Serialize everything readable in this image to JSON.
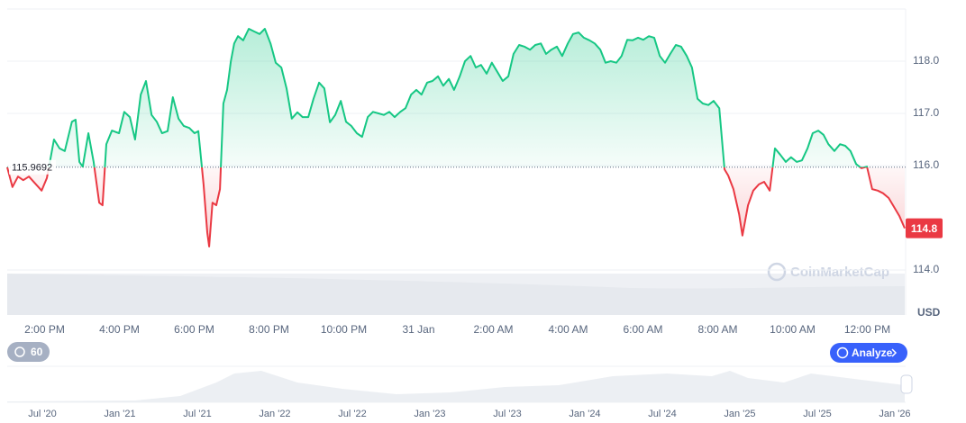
{
  "chart_data": {
    "type": "line",
    "reference": 115.9692,
    "price": 114.8,
    "currency": "USD",
    "watermark": "CoinMarketCap",
    "interval_button": "60",
    "analyze_button": "Analyze",
    "colors": {
      "up": "#16c784",
      "down": "#ea3943"
    },
    "xlim": [
      13,
      37
    ],
    "ylim": [
      114,
      119
    ],
    "yticks": [
      {
        "value": 114,
        "label": "114.0"
      },
      {
        "value": 116,
        "label": "116.0"
      },
      {
        "value": 117,
        "label": "117.0"
      },
      {
        "value": 118,
        "label": "118.0"
      }
    ],
    "xticks": [
      {
        "value": 14,
        "label": "2:00 PM"
      },
      {
        "value": 16,
        "label": "4:00 PM"
      },
      {
        "value": 18,
        "label": "6:00 PM"
      },
      {
        "value": 20,
        "label": "8:00 PM"
      },
      {
        "value": 22,
        "label": "10:00 PM"
      },
      {
        "value": 24,
        "label": "31 Jan"
      },
      {
        "value": 26,
        "label": "2:00 AM"
      },
      {
        "value": 28,
        "label": "4:00 AM"
      },
      {
        "value": 30,
        "label": "6:00 AM"
      },
      {
        "value": 32,
        "label": "8:00 AM"
      },
      {
        "value": 34,
        "label": "10:00 AM"
      },
      {
        "value": 36,
        "label": "12:00 PM"
      }
    ],
    "x": [
      13.0,
      13.14,
      13.29,
      13.43,
      13.58,
      13.77,
      13.92,
      14.06,
      14.16,
      14.25,
      14.4,
      14.54,
      14.73,
      14.83,
      14.93,
      15.02,
      15.17,
      15.31,
      15.46,
      15.55,
      15.65,
      15.8,
      15.99,
      16.13,
      16.28,
      16.42,
      16.57,
      16.71,
      16.86,
      17.0,
      17.14,
      17.29,
      17.43,
      17.58,
      17.72,
      17.87,
      18.01,
      18.11,
      18.25,
      18.35,
      18.4,
      18.49,
      18.59,
      18.69,
      18.78,
      18.88,
      18.98,
      19.07,
      19.17,
      19.31,
      19.46,
      19.6,
      19.75,
      19.89,
      20.04,
      20.18,
      20.33,
      20.47,
      20.61,
      20.76,
      20.9,
      21.05,
      21.19,
      21.34,
      21.48,
      21.63,
      21.77,
      21.92,
      22.06,
      22.2,
      22.35,
      22.49,
      22.64,
      22.78,
      22.93,
      23.07,
      23.22,
      23.36,
      23.51,
      23.65,
      23.8,
      23.94,
      24.08,
      24.23,
      24.37,
      24.52,
      24.66,
      24.81,
      24.95,
      25.1,
      25.24,
      25.39,
      25.53,
      25.67,
      25.82,
      25.96,
      26.11,
      26.25,
      26.4,
      26.54,
      26.69,
      26.83,
      26.98,
      27.12,
      27.27,
      27.41,
      27.55,
      27.7,
      27.84,
      27.99,
      28.13,
      28.28,
      28.42,
      28.57,
      28.71,
      28.86,
      29.0,
      29.14,
      29.29,
      29.43,
      29.58,
      29.72,
      29.87,
      30.01,
      30.16,
      30.3,
      30.45,
      30.59,
      30.73,
      30.88,
      31.02,
      31.17,
      31.31,
      31.46,
      31.6,
      31.75,
      31.89,
      32.04,
      32.18,
      32.28,
      32.42,
      32.57,
      32.66,
      32.81,
      32.95,
      33.1,
      33.24,
      33.39,
      33.53,
      33.67,
      33.82,
      33.96,
      34.11,
      34.25,
      34.4,
      34.54,
      34.69,
      34.83,
      34.96,
      35.12,
      35.27,
      35.41,
      35.55,
      35.7,
      35.84,
      35.99,
      36.13,
      36.28,
      36.42,
      36.57,
      36.71,
      36.86,
      37.0
    ],
    "values": [
      115.97,
      115.59,
      115.79,
      115.72,
      115.79,
      115.64,
      115.52,
      115.76,
      116.14,
      116.5,
      116.33,
      116.28,
      116.84,
      116.88,
      116.07,
      115.98,
      116.62,
      116.07,
      115.29,
      115.24,
      116.41,
      116.67,
      116.62,
      117.03,
      116.93,
      116.5,
      117.36,
      117.62,
      116.97,
      116.84,
      116.62,
      116.66,
      117.31,
      116.9,
      116.76,
      116.72,
      116.62,
      116.66,
      115.64,
      114.72,
      114.45,
      115.29,
      115.24,
      115.55,
      117.19,
      117.45,
      118.0,
      118.34,
      118.48,
      118.4,
      118.62,
      118.57,
      118.52,
      118.62,
      118.34,
      117.97,
      117.88,
      117.48,
      116.9,
      117.02,
      116.93,
      116.93,
      117.28,
      117.59,
      117.48,
      116.83,
      116.97,
      117.24,
      116.84,
      116.76,
      116.62,
      116.55,
      116.93,
      117.03,
      117.0,
      116.97,
      117.03,
      116.93,
      117.03,
      117.1,
      117.36,
      117.45,
      117.36,
      117.59,
      117.62,
      117.71,
      117.53,
      117.66,
      117.45,
      117.71,
      118.0,
      118.1,
      117.88,
      117.93,
      117.76,
      117.97,
      117.79,
      117.62,
      117.71,
      118.14,
      118.31,
      118.28,
      118.22,
      118.31,
      118.34,
      118.14,
      118.22,
      118.28,
      118.1,
      118.34,
      118.52,
      118.55,
      118.45,
      118.4,
      118.34,
      118.22,
      117.97,
      118.0,
      117.97,
      118.1,
      118.41,
      118.4,
      118.45,
      118.41,
      118.48,
      118.45,
      118.1,
      117.97,
      118.14,
      118.31,
      118.28,
      118.1,
      117.88,
      117.28,
      117.19,
      117.16,
      117.24,
      117.1,
      115.93,
      115.81,
      115.55,
      115.07,
      114.66,
      115.24,
      115.52,
      115.64,
      115.69,
      115.52,
      116.33,
      116.21,
      116.07,
      116.16,
      116.07,
      116.1,
      116.33,
      116.62,
      116.67,
      116.59,
      116.41,
      116.28,
      116.41,
      116.38,
      116.28,
      116.03,
      115.95,
      115.98,
      115.55,
      115.52,
      115.47,
      115.38,
      115.21,
      115.03,
      114.8
    ],
    "navigator_labels": [
      "Jul '20",
      "Jan '21",
      "Jul '21",
      "Jan '22",
      "Jul '22",
      "Jan '23",
      "Jul '23",
      "Jan '24",
      "Jul '24",
      "Jan '25",
      "Jul '25",
      "Jan '26"
    ]
  }
}
